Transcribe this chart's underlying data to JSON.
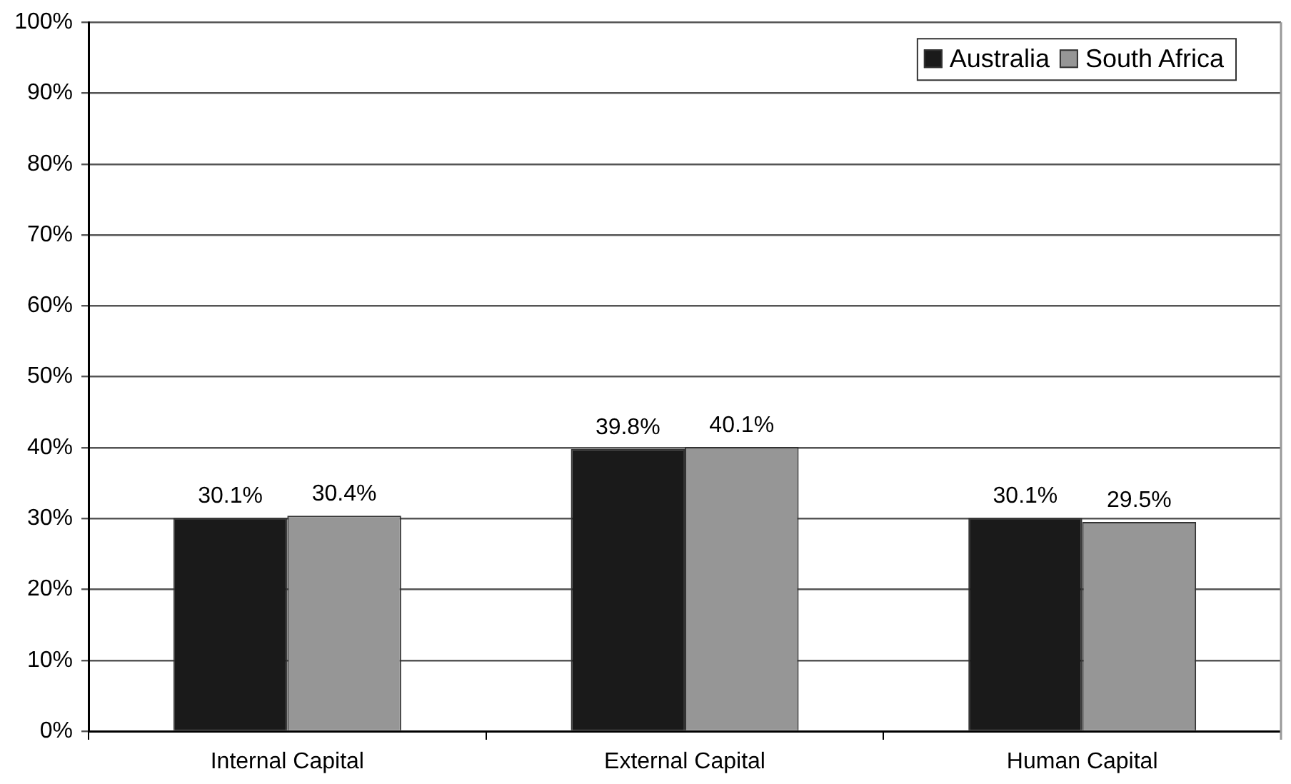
{
  "chart_data": {
    "type": "bar",
    "categories": [
      "Internal Capital",
      "External Capital",
      "Human Capital"
    ],
    "series": [
      {
        "name": "Australia",
        "color": "#1a1a1a",
        "values": [
          30.1,
          39.8,
          30.1
        ],
        "value_labels": [
          "30.1%",
          "39.8%",
          "30.1%"
        ]
      },
      {
        "name": "South Africa",
        "color": "#969696",
        "values": [
          30.4,
          40.1,
          29.5
        ],
        "value_labels": [
          "30.4%",
          "40.1%",
          "29.5%"
        ]
      }
    ],
    "ylim": [
      0,
      100
    ],
    "yticks": [
      {
        "value": 0,
        "label": "0%"
      },
      {
        "value": 10,
        "label": "10%"
      },
      {
        "value": 20,
        "label": "20%"
      },
      {
        "value": 30,
        "label": "30%"
      },
      {
        "value": 40,
        "label": "40%"
      },
      {
        "value": 50,
        "label": "50%"
      },
      {
        "value": 60,
        "label": "60%"
      },
      {
        "value": 70,
        "label": "70%"
      },
      {
        "value": 80,
        "label": "80%"
      },
      {
        "value": 90,
        "label": "90%"
      },
      {
        "value": 100,
        "label": "100%"
      }
    ],
    "grid": "y",
    "legend": "top right"
  }
}
